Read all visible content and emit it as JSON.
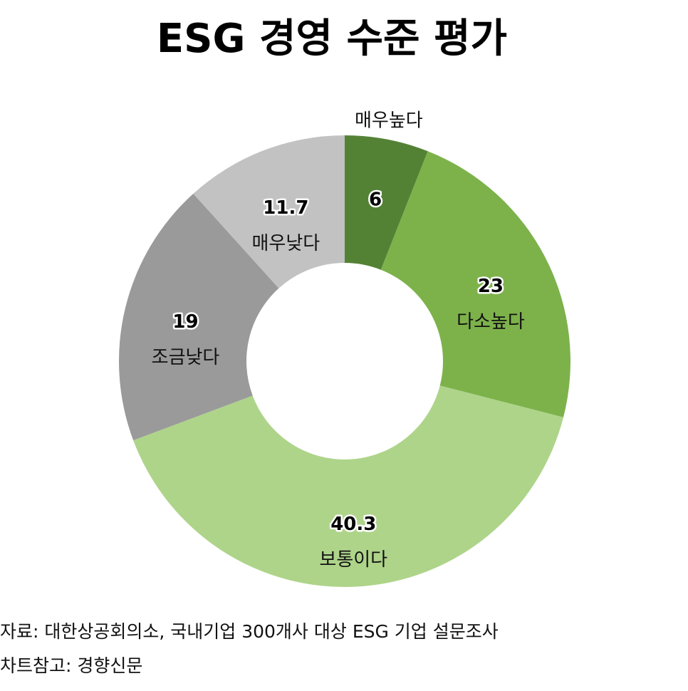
{
  "chart_data": {
    "type": "donut",
    "title": "ESG 경영 수준 평가",
    "categories": [
      "매우높다",
      "다소높다",
      "보통이다",
      "조금낮다",
      "매우낮다"
    ],
    "values": [
      6,
      23,
      40.3,
      19,
      11.7
    ],
    "colors": [
      "#548235",
      "#7db24b",
      "#aed48a",
      "#9a9a9a",
      "#c2c2c2"
    ],
    "notes": [
      "자료: 대한상공회의소, 국내기업 300개사 대상 ESG 기업 설문조사",
      "차트참고: 경향신문"
    ]
  }
}
